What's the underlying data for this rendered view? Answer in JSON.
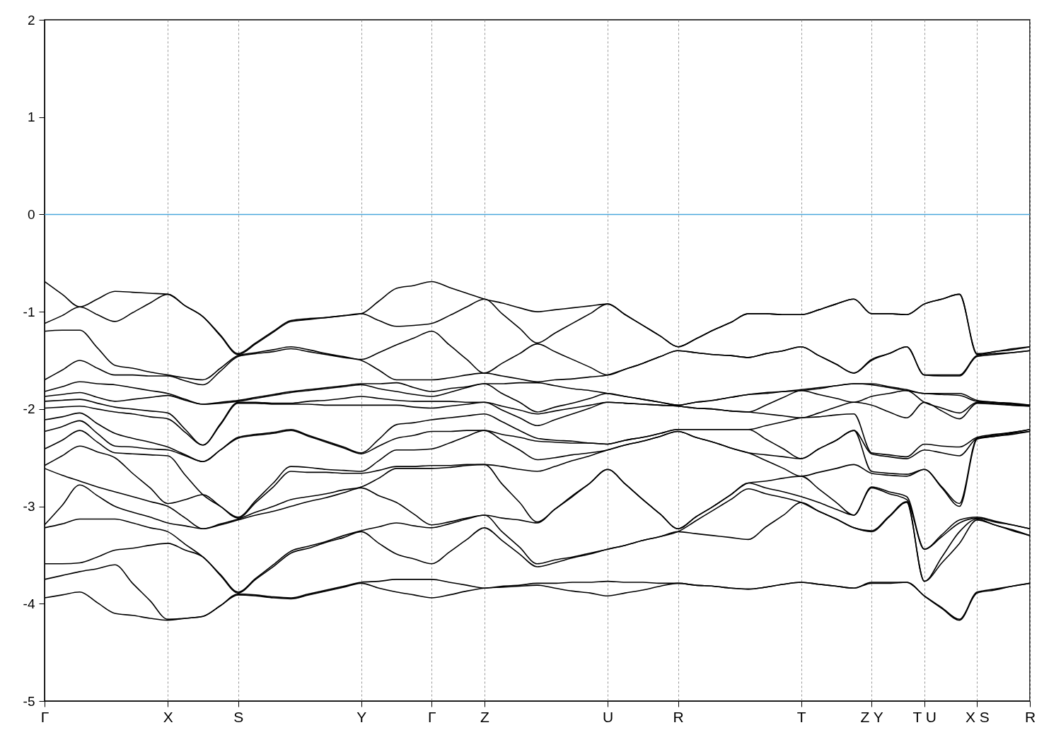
{
  "chart_data": {
    "type": "line",
    "categories": [
      "Γ",
      null,
      null,
      null,
      null,
      null,
      null,
      "X",
      null,
      null,
      null,
      "S",
      null,
      null,
      null,
      null,
      null,
      null,
      "Y",
      null,
      null,
      null,
      "Γ",
      null,
      null,
      "Z",
      null,
      null,
      null,
      null,
      null,
      null,
      "U",
      null,
      null,
      null,
      "R",
      null,
      null,
      null,
      null,
      null,
      null,
      "T",
      null,
      null,
      null,
      "Z Y",
      null,
      null,
      "T U",
      null,
      null,
      "X S",
      null,
      null,
      "R"
    ],
    "ylim": [
      -5,
      2
    ],
    "yticks": [
      -5,
      -4,
      -3,
      -2,
      -1,
      0,
      1,
      2
    ],
    "grid": "x",
    "ref_lines": [
      {
        "axis": "y",
        "value": 0,
        "color": "#4aa8dc"
      }
    ],
    "series": [
      {
        "color": "#000000",
        "values": [
          -0.69,
          -0.82,
          -0.95,
          -0.87,
          -0.79,
          -0.8,
          -0.81,
          -0.82,
          -0.94,
          -1.05,
          -1.24,
          -1.43,
          -1.32,
          -1.2,
          -1.09,
          -1.07,
          -1.06,
          -1.04,
          -1.02,
          -0.89,
          -0.76,
          -0.73,
          -0.69,
          -0.75,
          -0.81,
          -0.87,
          -0.91,
          -0.96,
          -1.0,
          -0.98,
          -0.96,
          -0.94,
          -0.92,
          -1.03,
          -1.14,
          -1.25,
          -1.36,
          -1.28,
          -1.19,
          -1.11,
          -1.02,
          -1.02,
          -1.03,
          -1.03,
          -0.98,
          -0.92,
          -0.87,
          -1.02,
          -1.02,
          -1.03,
          -0.92,
          -0.87,
          -0.82,
          -1.43,
          -1.41,
          -1.38,
          -1.36
        ]
      },
      {
        "color": "#000000",
        "values": [
          -1.12,
          -1.04,
          -0.95,
          -1.03,
          -1.1,
          -1.01,
          -0.91,
          -0.82,
          -0.94,
          -1.05,
          -1.25,
          -1.44,
          -1.33,
          -1.21,
          -1.1,
          -1.08,
          -1.06,
          -1.04,
          -1.02,
          -1.09,
          -1.15,
          -1.14,
          -1.12,
          -1.04,
          -0.95,
          -0.87,
          -1.02,
          -1.17,
          -1.32,
          -1.22,
          -1.12,
          -1.02,
          -0.92,
          -1.03,
          -1.14,
          -1.25,
          -1.36,
          -1.28,
          -1.19,
          -1.11,
          -1.02,
          -1.02,
          -1.03,
          -1.03,
          -0.98,
          -0.92,
          -0.87,
          -1.02,
          -1.02,
          -1.03,
          -0.92,
          -0.87,
          -0.82,
          -1.44,
          -1.41,
          -1.39,
          -1.36
        ]
      },
      {
        "color": "#000000",
        "values": [
          -1.2,
          -1.19,
          -1.19,
          -1.37,
          -1.55,
          -1.58,
          -1.62,
          -1.65,
          -1.68,
          -1.7,
          -1.58,
          -1.45,
          -1.42,
          -1.39,
          -1.36,
          -1.39,
          -1.43,
          -1.46,
          -1.49,
          -1.42,
          -1.34,
          -1.27,
          -1.2,
          -1.34,
          -1.49,
          -1.63,
          -1.53,
          -1.43,
          -1.33,
          -1.41,
          -1.49,
          -1.57,
          -1.65,
          -1.59,
          -1.53,
          -1.46,
          -1.4,
          -1.42,
          -1.44,
          -1.45,
          -1.47,
          -1.43,
          -1.4,
          -1.36,
          -1.45,
          -1.54,
          -1.63,
          -1.49,
          -1.43,
          -1.36,
          -1.65,
          -1.65,
          -1.65,
          -1.45,
          -1.43,
          -1.42,
          -1.4
        ]
      },
      {
        "color": "#000000",
        "values": [
          -1.7,
          -1.6,
          -1.5,
          -1.58,
          -1.65,
          -1.65,
          -1.66,
          -1.66,
          -1.71,
          -1.75,
          -1.61,
          -1.46,
          -1.43,
          -1.41,
          -1.38,
          -1.41,
          -1.44,
          -1.47,
          -1.5,
          -1.6,
          -1.7,
          -1.7,
          -1.7,
          -1.68,
          -1.65,
          -1.63,
          -1.66,
          -1.69,
          -1.72,
          -1.7,
          -1.69,
          -1.67,
          -1.65,
          -1.59,
          -1.53,
          -1.46,
          -1.4,
          -1.42,
          -1.44,
          -1.45,
          -1.47,
          -1.43,
          -1.4,
          -1.36,
          -1.45,
          -1.54,
          -1.63,
          -1.5,
          -1.43,
          -1.36,
          -1.65,
          -1.66,
          -1.66,
          -1.46,
          -1.44,
          -1.42,
          -1.4
        ]
      },
      {
        "color": "#000000",
        "values": [
          -1.82,
          -1.77,
          -1.72,
          -1.74,
          -1.75,
          -1.78,
          -1.81,
          -1.84,
          -1.9,
          -1.95,
          -1.93,
          -1.91,
          -1.88,
          -1.85,
          -1.82,
          -1.8,
          -1.78,
          -1.76,
          -1.74,
          -1.74,
          -1.73,
          -1.78,
          -1.82,
          -1.79,
          -1.77,
          -1.74,
          -1.74,
          -1.73,
          -1.73,
          -1.76,
          -1.79,
          -1.81,
          -1.84,
          -1.87,
          -1.9,
          -1.93,
          -1.96,
          -1.93,
          -1.91,
          -1.88,
          -1.85,
          -1.83,
          -1.82,
          -1.8,
          -1.78,
          -1.76,
          -1.74,
          -1.74,
          -1.77,
          -1.8,
          -1.84,
          -1.84,
          -1.84,
          -1.91,
          -1.93,
          -1.94,
          -1.96
        ]
      },
      {
        "color": "#000000",
        "values": [
          -1.87,
          -1.85,
          -1.83,
          -1.88,
          -1.92,
          -1.9,
          -1.88,
          -1.86,
          -1.91,
          -1.95,
          -1.94,
          -1.92,
          -1.89,
          -1.86,
          -1.83,
          -1.81,
          -1.79,
          -1.77,
          -1.75,
          -1.79,
          -1.82,
          -1.85,
          -1.87,
          -1.83,
          -1.78,
          -1.74,
          -1.84,
          -1.93,
          -2.03,
          -1.98,
          -1.94,
          -1.89,
          -1.84,
          -1.87,
          -1.9,
          -1.93,
          -1.96,
          -1.93,
          -1.91,
          -1.88,
          -1.85,
          -1.84,
          -1.82,
          -1.81,
          -1.79,
          -1.76,
          -1.74,
          -1.75,
          -1.78,
          -1.81,
          -1.84,
          -1.85,
          -1.86,
          -1.92,
          -1.93,
          -1.95,
          -1.96
        ]
      },
      {
        "color": "#000000",
        "values": [
          -1.92,
          -1.91,
          -1.9,
          -1.94,
          -1.98,
          -2.0,
          -2.02,
          -2.04,
          -2.21,
          -2.37,
          -2.15,
          -1.93,
          -1.93,
          -1.94,
          -1.94,
          -1.92,
          -1.91,
          -1.89,
          -1.87,
          -1.89,
          -1.91,
          -1.92,
          -1.92,
          -1.92,
          -1.93,
          -1.93,
          -1.97,
          -2.01,
          -2.05,
          -2.02,
          -1.99,
          -1.96,
          -1.93,
          -1.94,
          -1.95,
          -1.96,
          -1.97,
          -1.99,
          -2.0,
          -2.02,
          -2.03,
          -1.96,
          -1.88,
          -1.81,
          -1.85,
          -1.89,
          -1.93,
          -1.87,
          -1.84,
          -1.81,
          -1.93,
          -1.99,
          -2.04,
          -1.93,
          -1.94,
          -1.96,
          -1.97
        ]
      },
      {
        "color": "#000000",
        "values": [
          -1.99,
          -1.98,
          -1.97,
          -2.0,
          -2.03,
          -2.05,
          -2.08,
          -2.1,
          -2.24,
          -2.37,
          -2.16,
          -1.94,
          -1.94,
          -1.95,
          -1.95,
          -1.95,
          -1.96,
          -1.96,
          -1.96,
          -1.96,
          -1.96,
          -1.98,
          -1.99,
          -1.97,
          -1.95,
          -1.93,
          -2.01,
          -2.09,
          -2.17,
          -2.11,
          -2.05,
          -1.99,
          -1.93,
          -1.94,
          -1.95,
          -1.96,
          -1.97,
          -1.99,
          -2.0,
          -2.02,
          -2.03,
          -2.05,
          -2.07,
          -2.09,
          -2.04,
          -1.98,
          -1.93,
          -1.96,
          -2.03,
          -2.09,
          -1.93,
          -2.02,
          -2.1,
          -1.94,
          -1.95,
          -1.96,
          -1.97
        ]
      },
      {
        "color": "#000000",
        "values": [
          -2.11,
          -2.08,
          -2.04,
          -2.15,
          -2.25,
          -2.3,
          -2.34,
          -2.39,
          -2.47,
          -2.54,
          -2.42,
          -2.29,
          -2.26,
          -2.24,
          -2.21,
          -2.27,
          -2.33,
          -2.39,
          -2.45,
          -2.31,
          -2.16,
          -2.14,
          -2.11,
          -2.09,
          -2.07,
          -2.05,
          -2.13,
          -2.22,
          -2.3,
          -2.32,
          -2.33,
          -2.35,
          -2.36,
          -2.32,
          -2.29,
          -2.25,
          -2.21,
          -2.21,
          -2.21,
          -2.21,
          -2.21,
          -2.17,
          -2.13,
          -2.09,
          -2.08,
          -2.06,
          -2.05,
          -2.45,
          -2.47,
          -2.49,
          -2.36,
          -2.38,
          -2.39,
          -2.29,
          -2.26,
          -2.24,
          -2.21
        ]
      },
      {
        "color": "#000000",
        "values": [
          -2.23,
          -2.18,
          -2.12,
          -2.25,
          -2.38,
          -2.39,
          -2.41,
          -2.42,
          -2.48,
          -2.54,
          -2.42,
          -2.3,
          -2.27,
          -2.25,
          -2.22,
          -2.28,
          -2.34,
          -2.4,
          -2.46,
          -2.38,
          -2.3,
          -2.27,
          -2.23,
          -2.23,
          -2.22,
          -2.22,
          -2.26,
          -2.29,
          -2.33,
          -2.34,
          -2.35,
          -2.35,
          -2.36,
          -2.32,
          -2.29,
          -2.25,
          -2.21,
          -2.21,
          -2.21,
          -2.21,
          -2.21,
          -2.31,
          -2.41,
          -2.51,
          -2.41,
          -2.32,
          -2.22,
          -2.46,
          -2.49,
          -2.51,
          -2.42,
          -2.45,
          -2.48,
          -2.3,
          -2.27,
          -2.24,
          -2.21
        ]
      },
      {
        "color": "#000000",
        "values": [
          -2.41,
          -2.32,
          -2.22,
          -2.34,
          -2.45,
          -2.46,
          -2.47,
          -2.48,
          -2.68,
          -2.88,
          -3.0,
          -3.11,
          -2.94,
          -2.76,
          -2.59,
          -2.6,
          -2.62,
          -2.63,
          -2.64,
          -2.53,
          -2.42,
          -2.42,
          -2.41,
          -2.35,
          -2.28,
          -2.22,
          -2.32,
          -2.42,
          -2.52,
          -2.5,
          -2.47,
          -2.45,
          -2.42,
          -2.37,
          -2.33,
          -2.28,
          -2.23,
          -2.29,
          -2.34,
          -2.4,
          -2.45,
          -2.47,
          -2.49,
          -2.51,
          -2.41,
          -2.32,
          -2.22,
          -2.64,
          -2.66,
          -2.67,
          -2.62,
          -2.8,
          -2.97,
          -2.3,
          -2.28,
          -2.25,
          -2.23
        ]
      },
      {
        "color": "#000000",
        "values": [
          -2.58,
          -2.48,
          -2.38,
          -2.44,
          -2.5,
          -2.66,
          -2.81,
          -2.97,
          -2.93,
          -2.88,
          -3.0,
          -3.12,
          -2.96,
          -2.8,
          -2.64,
          -2.65,
          -2.65,
          -2.66,
          -2.66,
          -2.63,
          -2.59,
          -2.59,
          -2.58,
          -2.58,
          -2.57,
          -2.57,
          -2.59,
          -2.62,
          -2.64,
          -2.59,
          -2.53,
          -2.48,
          -2.42,
          -2.37,
          -2.33,
          -2.28,
          -2.23,
          -2.29,
          -2.34,
          -2.4,
          -2.45,
          -2.53,
          -2.61,
          -2.69,
          -2.65,
          -2.61,
          -2.57,
          -2.66,
          -2.68,
          -2.69,
          -2.62,
          -2.81,
          -3.0,
          -2.31,
          -2.28,
          -2.26,
          -2.23
        ]
      },
      {
        "color": "#000000",
        "values": [
          -2.61,
          -2.68,
          -2.74,
          -2.8,
          -2.85,
          -2.9,
          -2.95,
          -3.0,
          -3.12,
          -3.23,
          -3.18,
          -3.13,
          -3.06,
          -3.0,
          -2.93,
          -2.9,
          -2.87,
          -2.83,
          -2.8,
          -2.71,
          -2.61,
          -2.61,
          -2.61,
          -2.6,
          -2.58,
          -2.57,
          -2.77,
          -2.96,
          -3.16,
          -3.03,
          -2.89,
          -2.76,
          -2.62,
          -2.77,
          -2.93,
          -3.08,
          -3.23,
          -3.11,
          -3.0,
          -2.88,
          -2.76,
          -2.74,
          -2.71,
          -2.69,
          -2.82,
          -2.96,
          -3.09,
          -2.8,
          -2.85,
          -2.9,
          -3.44,
          -3.29,
          -3.14,
          -3.11,
          -3.15,
          -3.19,
          -3.23
        ]
      },
      {
        "color": "#000000",
        "values": [
          -3.19,
          -2.99,
          -2.78,
          -2.89,
          -3.0,
          -3.06,
          -3.11,
          -3.17,
          -3.2,
          -3.23,
          -3.19,
          -3.14,
          -3.09,
          -3.05,
          -3.0,
          -2.95,
          -2.91,
          -2.86,
          -2.81,
          -2.89,
          -2.96,
          -3.08,
          -3.19,
          -3.16,
          -3.12,
          -3.09,
          -3.12,
          -3.14,
          -3.17,
          -3.03,
          -2.9,
          -2.76,
          -2.62,
          -2.77,
          -2.93,
          -3.08,
          -3.23,
          -3.11,
          -3.0,
          -2.88,
          -2.76,
          -2.81,
          -2.85,
          -2.9,
          -2.96,
          -3.03,
          -3.09,
          -2.81,
          -2.87,
          -2.93,
          -3.44,
          -3.31,
          -3.17,
          -3.12,
          -3.16,
          -3.19,
          -3.23
        ]
      },
      {
        "color": "#000000",
        "values": [
          -3.22,
          -3.18,
          -3.13,
          -3.13,
          -3.13,
          -3.17,
          -3.22,
          -3.26,
          -3.39,
          -3.52,
          -3.7,
          -3.88,
          -3.74,
          -3.6,
          -3.46,
          -3.41,
          -3.36,
          -3.3,
          -3.25,
          -3.21,
          -3.17,
          -3.2,
          -3.22,
          -3.18,
          -3.13,
          -3.09,
          -3.26,
          -3.42,
          -3.59,
          -3.55,
          -3.52,
          -3.48,
          -3.44,
          -3.4,
          -3.35,
          -3.31,
          -3.26,
          -3.15,
          -3.04,
          -2.93,
          -2.82,
          -2.87,
          -2.91,
          -2.96,
          -3.05,
          -3.13,
          -3.22,
          -3.25,
          -3.1,
          -2.95,
          -3.77,
          -3.52,
          -3.26,
          -3.13,
          -3.19,
          -3.24,
          -3.3
        ]
      },
      {
        "color": "#000000",
        "values": [
          -3.59,
          -3.59,
          -3.58,
          -3.52,
          -3.45,
          -3.43,
          -3.4,
          -3.38,
          -3.45,
          -3.52,
          -3.71,
          -3.89,
          -3.75,
          -3.62,
          -3.48,
          -3.43,
          -3.37,
          -3.32,
          -3.26,
          -3.38,
          -3.49,
          -3.54,
          -3.59,
          -3.47,
          -3.34,
          -3.22,
          -3.35,
          -3.49,
          -3.62,
          -3.58,
          -3.53,
          -3.49,
          -3.44,
          -3.4,
          -3.35,
          -3.31,
          -3.26,
          -3.28,
          -3.3,
          -3.32,
          -3.34,
          -3.21,
          -3.09,
          -2.96,
          -3.05,
          -3.13,
          -3.22,
          -3.26,
          -3.11,
          -2.96,
          -3.77,
          -3.58,
          -3.38,
          -3.14,
          -3.19,
          -3.25,
          -3.3
        ]
      },
      {
        "color": "#000000",
        "values": [
          -3.75,
          -3.71,
          -3.67,
          -3.64,
          -3.6,
          -3.79,
          -3.97,
          -4.16,
          -4.15,
          -4.13,
          -4.02,
          -3.9,
          -3.91,
          -3.93,
          -3.94,
          -3.9,
          -3.86,
          -3.82,
          -3.78,
          -3.77,
          -3.75,
          -3.75,
          -3.75,
          -3.78,
          -3.81,
          -3.84,
          -3.82,
          -3.81,
          -3.79,
          -3.79,
          -3.78,
          -3.78,
          -3.77,
          -3.78,
          -3.78,
          -3.79,
          -3.79,
          -3.81,
          -3.82,
          -3.84,
          -3.85,
          -3.83,
          -3.8,
          -3.78,
          -3.8,
          -3.82,
          -3.84,
          -3.78,
          -3.78,
          -3.78,
          -3.92,
          -4.04,
          -4.16,
          -3.88,
          -3.85,
          -3.82,
          -3.79
        ]
      },
      {
        "color": "#000000",
        "values": [
          -3.94,
          -3.91,
          -3.88,
          -3.99,
          -4.1,
          -4.12,
          -4.15,
          -4.17,
          -4.15,
          -4.13,
          -4.02,
          -3.91,
          -3.92,
          -3.94,
          -3.95,
          -3.91,
          -3.87,
          -3.83,
          -3.79,
          -3.84,
          -3.88,
          -3.91,
          -3.94,
          -3.91,
          -3.87,
          -3.84,
          -3.83,
          -3.82,
          -3.81,
          -3.84,
          -3.87,
          -3.89,
          -3.92,
          -3.89,
          -3.86,
          -3.82,
          -3.79,
          -3.81,
          -3.82,
          -3.84,
          -3.85,
          -3.83,
          -3.8,
          -3.78,
          -3.8,
          -3.82,
          -3.84,
          -3.79,
          -3.79,
          -3.78,
          -3.92,
          -4.05,
          -4.17,
          -3.89,
          -3.86,
          -3.82,
          -3.79
        ]
      }
    ]
  }
}
